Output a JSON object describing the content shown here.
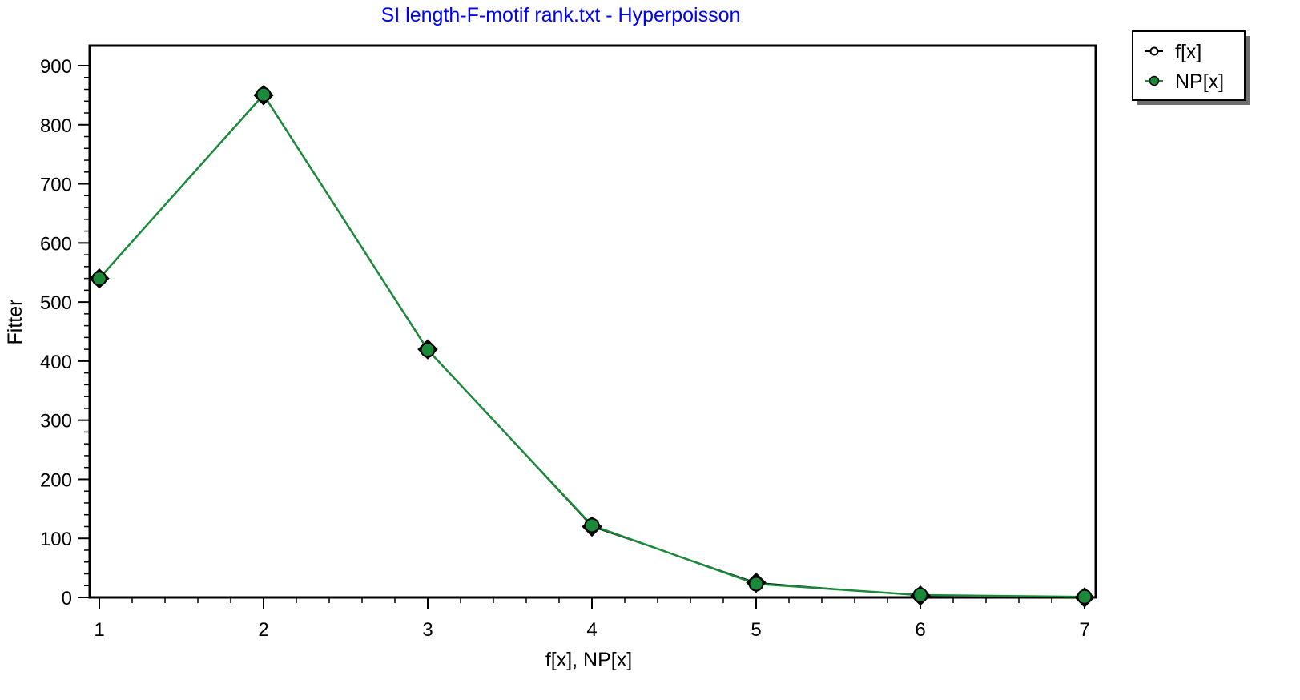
{
  "chart_data": {
    "type": "line",
    "title": "SI length-F-motif rank.txt  -  Hyperpoisson",
    "xlabel": "f[x], NP[x]",
    "ylabel": "Fitter",
    "x": [
      1,
      2,
      3,
      4,
      5,
      6,
      7
    ],
    "xlim": [
      1,
      7
    ],
    "ylim": [
      0,
      900
    ],
    "x_ticks": [
      1,
      2,
      3,
      4,
      5,
      6,
      7
    ],
    "y_ticks": [
      0,
      100,
      200,
      300,
      400,
      500,
      600,
      700,
      800,
      900
    ],
    "series": [
      {
        "name": "f[x]",
        "values": [
          540,
          850,
          420,
          120,
          25,
          3,
          0
        ],
        "color": "#000000",
        "marker": "open-circle"
      },
      {
        "name": "NP[x]",
        "values": [
          540,
          851,
          419,
          122,
          23,
          4,
          1
        ],
        "color": "#1a8a3a",
        "marker": "filled-circle"
      }
    ],
    "grid": false,
    "legend_position": "top-right"
  }
}
